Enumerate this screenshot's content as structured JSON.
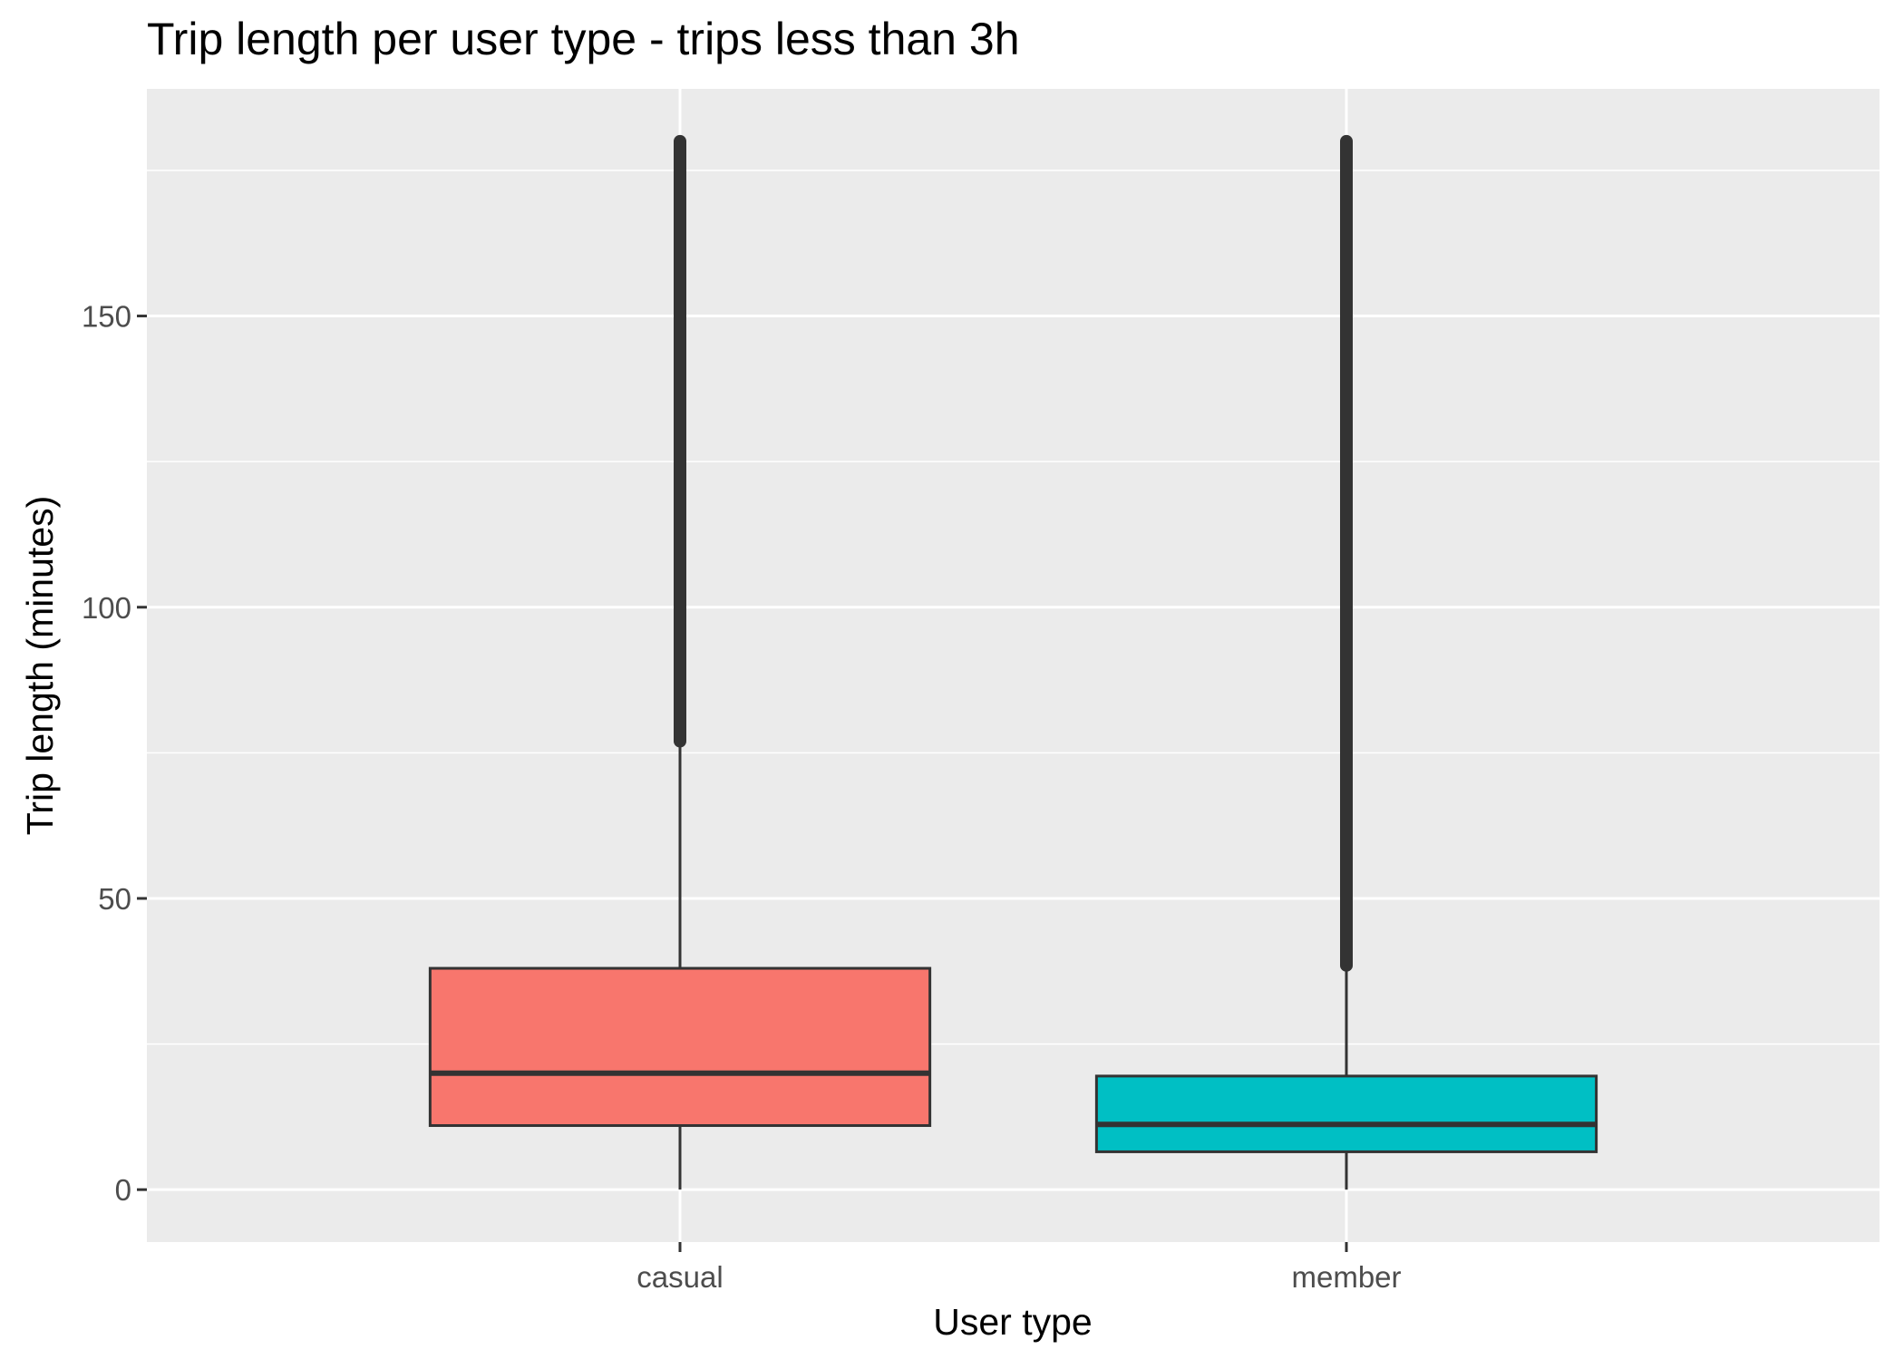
{
  "chart_data": {
    "type": "boxplot",
    "title": "Trip length per user type - trips less than 3h",
    "xlabel": "User type",
    "ylabel": "Trip length (minutes)",
    "ylim": [
      -9,
      189
    ],
    "y_ticks": [
      0,
      50,
      100,
      150
    ],
    "y_minor_ticks": [
      25,
      75,
      125,
      175
    ],
    "grid": true,
    "legend": "none",
    "panel_background": "#EBEBEB",
    "grid_color": "#FFFFFF",
    "line_color": "#333333",
    "categories": [
      "casual",
      "member"
    ],
    "series": [
      {
        "category": "casual",
        "color": "#F8766D",
        "whisker_low": 0,
        "q1": 11,
        "median": 20,
        "q3": 38,
        "whisker_high": 77,
        "outliers_from": 77,
        "outliers_to": 180
      },
      {
        "category": "member",
        "color": "#00BFC4",
        "whisker_low": 0,
        "q1": 6.5,
        "median": 11.2,
        "q3": 19.5,
        "whisker_high": 38.5,
        "outliers_from": 38.5,
        "outliers_to": 180
      }
    ]
  }
}
